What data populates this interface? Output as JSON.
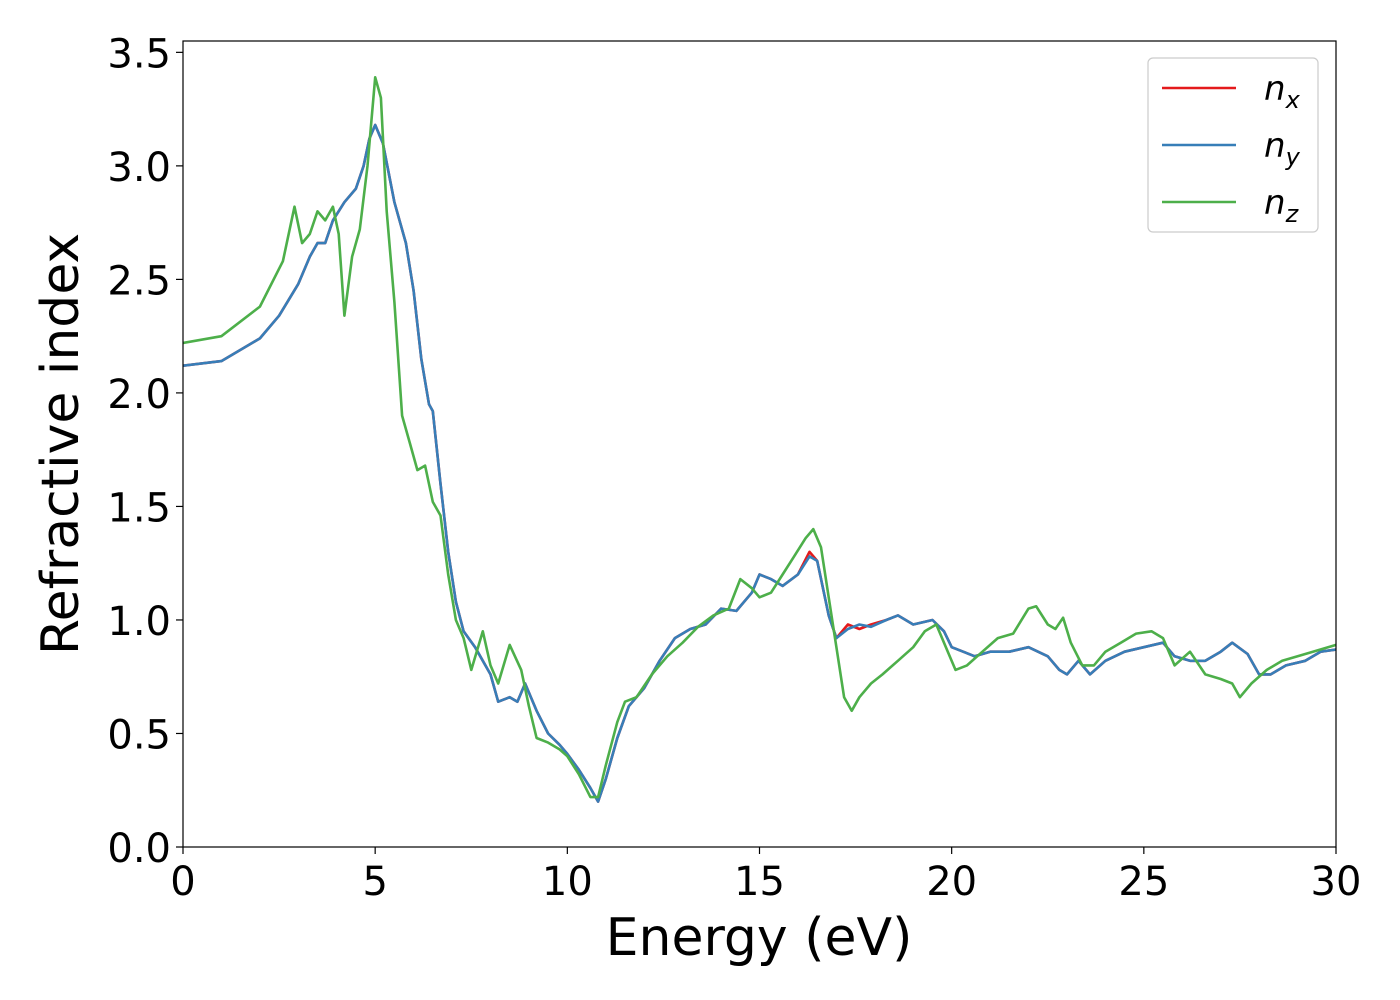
{
  "chart_data": {
    "type": "line",
    "xlabel": "Energy (eV)",
    "ylabel": "Refractive index",
    "xlim": [
      0,
      30
    ],
    "ylim": [
      0,
      3.55
    ],
    "xticks": [
      "0",
      "5",
      "10",
      "15",
      "20",
      "25",
      "30"
    ],
    "yticks": [
      "0.0",
      "0.5",
      "1.0",
      "1.5",
      "2.0",
      "2.5",
      "3.0",
      "3.5"
    ],
    "grid": false,
    "legend_position": "top-right",
    "series": [
      {
        "name": "n_x",
        "legend_base": "n",
        "legend_sub": "x",
        "color": "#e41a1c",
        "points": [
          [
            0,
            2.12
          ],
          [
            1,
            2.14
          ],
          [
            2,
            2.24
          ],
          [
            2.5,
            2.34
          ],
          [
            3,
            2.48
          ],
          [
            3.3,
            2.6
          ],
          [
            3.5,
            2.66
          ],
          [
            3.7,
            2.66
          ],
          [
            3.9,
            2.76
          ],
          [
            4.2,
            2.84
          ],
          [
            4.5,
            2.9
          ],
          [
            4.7,
            3.0
          ],
          [
            4.85,
            3.12
          ],
          [
            5.0,
            3.18
          ],
          [
            5.2,
            3.1
          ],
          [
            5.5,
            2.84
          ],
          [
            5.8,
            2.66
          ],
          [
            6.0,
            2.45
          ],
          [
            6.2,
            2.15
          ],
          [
            6.4,
            1.95
          ],
          [
            6.5,
            1.92
          ],
          [
            6.7,
            1.6
          ],
          [
            6.9,
            1.3
          ],
          [
            7.1,
            1.08
          ],
          [
            7.3,
            0.95
          ],
          [
            7.6,
            0.88
          ],
          [
            8.0,
            0.76
          ],
          [
            8.2,
            0.64
          ],
          [
            8.5,
            0.66
          ],
          [
            8.7,
            0.64
          ],
          [
            8.9,
            0.72
          ],
          [
            9.2,
            0.6
          ],
          [
            9.5,
            0.5
          ],
          [
            9.8,
            0.45
          ],
          [
            10.0,
            0.41
          ],
          [
            10.3,
            0.34
          ],
          [
            10.6,
            0.26
          ],
          [
            10.8,
            0.2
          ],
          [
            11.0,
            0.3
          ],
          [
            11.3,
            0.48
          ],
          [
            11.6,
            0.62
          ],
          [
            12.0,
            0.7
          ],
          [
            12.4,
            0.82
          ],
          [
            12.8,
            0.92
          ],
          [
            13.2,
            0.96
          ],
          [
            13.6,
            0.98
          ],
          [
            14.0,
            1.05
          ],
          [
            14.4,
            1.04
          ],
          [
            14.8,
            1.12
          ],
          [
            15.0,
            1.2
          ],
          [
            15.3,
            1.18
          ],
          [
            15.6,
            1.15
          ],
          [
            16.0,
            1.2
          ],
          [
            16.3,
            1.3
          ],
          [
            16.5,
            1.26
          ],
          [
            16.8,
            1.02
          ],
          [
            17.0,
            0.92
          ],
          [
            17.3,
            0.98
          ],
          [
            17.6,
            0.96
          ],
          [
            17.9,
            0.98
          ],
          [
            18.3,
            1.0
          ],
          [
            18.6,
            1.02
          ],
          [
            19.0,
            0.98
          ],
          [
            19.5,
            1.0
          ],
          [
            19.8,
            0.95
          ],
          [
            20.0,
            0.88
          ],
          [
            20.3,
            0.86
          ],
          [
            20.6,
            0.84
          ],
          [
            21.0,
            0.86
          ],
          [
            21.5,
            0.86
          ],
          [
            22.0,
            0.88
          ],
          [
            22.5,
            0.84
          ],
          [
            22.8,
            0.78
          ],
          [
            23.0,
            0.76
          ],
          [
            23.3,
            0.82
          ],
          [
            23.6,
            0.76
          ],
          [
            24.0,
            0.82
          ],
          [
            24.5,
            0.86
          ],
          [
            25.0,
            0.88
          ],
          [
            25.5,
            0.9
          ],
          [
            25.8,
            0.84
          ],
          [
            26.2,
            0.82
          ],
          [
            26.6,
            0.82
          ],
          [
            27.0,
            0.86
          ],
          [
            27.3,
            0.9
          ],
          [
            27.7,
            0.85
          ],
          [
            28.0,
            0.76
          ],
          [
            28.3,
            0.76
          ],
          [
            28.7,
            0.8
          ],
          [
            29.2,
            0.82
          ],
          [
            29.6,
            0.86
          ],
          [
            30.0,
            0.87
          ]
        ]
      },
      {
        "name": "n_y",
        "legend_base": "n",
        "legend_sub": "y",
        "color": "#377eb8",
        "points": [
          [
            0,
            2.12
          ],
          [
            1,
            2.14
          ],
          [
            2,
            2.24
          ],
          [
            2.5,
            2.34
          ],
          [
            3,
            2.48
          ],
          [
            3.3,
            2.6
          ],
          [
            3.5,
            2.66
          ],
          [
            3.7,
            2.66
          ],
          [
            3.9,
            2.76
          ],
          [
            4.2,
            2.84
          ],
          [
            4.5,
            2.9
          ],
          [
            4.7,
            3.0
          ],
          [
            4.85,
            3.12
          ],
          [
            5.0,
            3.18
          ],
          [
            5.2,
            3.1
          ],
          [
            5.5,
            2.84
          ],
          [
            5.8,
            2.66
          ],
          [
            6.0,
            2.45
          ],
          [
            6.2,
            2.15
          ],
          [
            6.4,
            1.95
          ],
          [
            6.5,
            1.92
          ],
          [
            6.7,
            1.6
          ],
          [
            6.9,
            1.3
          ],
          [
            7.1,
            1.08
          ],
          [
            7.3,
            0.95
          ],
          [
            7.6,
            0.88
          ],
          [
            8.0,
            0.76
          ],
          [
            8.2,
            0.64
          ],
          [
            8.5,
            0.66
          ],
          [
            8.7,
            0.64
          ],
          [
            8.9,
            0.72
          ],
          [
            9.2,
            0.6
          ],
          [
            9.5,
            0.5
          ],
          [
            9.8,
            0.45
          ],
          [
            10.0,
            0.41
          ],
          [
            10.3,
            0.34
          ],
          [
            10.6,
            0.26
          ],
          [
            10.8,
            0.2
          ],
          [
            11.0,
            0.3
          ],
          [
            11.3,
            0.48
          ],
          [
            11.6,
            0.62
          ],
          [
            12.0,
            0.7
          ],
          [
            12.4,
            0.82
          ],
          [
            12.8,
            0.92
          ],
          [
            13.2,
            0.96
          ],
          [
            13.6,
            0.98
          ],
          [
            14.0,
            1.05
          ],
          [
            14.4,
            1.04
          ],
          [
            14.8,
            1.12
          ],
          [
            15.0,
            1.2
          ],
          [
            15.3,
            1.18
          ],
          [
            15.6,
            1.15
          ],
          [
            16.0,
            1.2
          ],
          [
            16.3,
            1.28
          ],
          [
            16.5,
            1.26
          ],
          [
            16.8,
            1.02
          ],
          [
            17.0,
            0.92
          ],
          [
            17.3,
            0.96
          ],
          [
            17.6,
            0.98
          ],
          [
            17.9,
            0.97
          ],
          [
            18.3,
            1.0
          ],
          [
            18.6,
            1.02
          ],
          [
            19.0,
            0.98
          ],
          [
            19.5,
            1.0
          ],
          [
            19.8,
            0.95
          ],
          [
            20.0,
            0.88
          ],
          [
            20.3,
            0.86
          ],
          [
            20.6,
            0.84
          ],
          [
            21.0,
            0.86
          ],
          [
            21.5,
            0.86
          ],
          [
            22.0,
            0.88
          ],
          [
            22.5,
            0.84
          ],
          [
            22.8,
            0.78
          ],
          [
            23.0,
            0.76
          ],
          [
            23.3,
            0.82
          ],
          [
            23.6,
            0.76
          ],
          [
            24.0,
            0.82
          ],
          [
            24.5,
            0.86
          ],
          [
            25.0,
            0.88
          ],
          [
            25.5,
            0.9
          ],
          [
            25.8,
            0.84
          ],
          [
            26.2,
            0.82
          ],
          [
            26.6,
            0.82
          ],
          [
            27.0,
            0.86
          ],
          [
            27.3,
            0.9
          ],
          [
            27.7,
            0.85
          ],
          [
            28.0,
            0.76
          ],
          [
            28.3,
            0.76
          ],
          [
            28.7,
            0.8
          ],
          [
            29.2,
            0.82
          ],
          [
            29.6,
            0.86
          ],
          [
            30.0,
            0.87
          ]
        ]
      },
      {
        "name": "n_z",
        "legend_base": "n",
        "legend_sub": "z",
        "color": "#4daf4a",
        "points": [
          [
            0,
            2.22
          ],
          [
            1,
            2.25
          ],
          [
            2,
            2.38
          ],
          [
            2.6,
            2.58
          ],
          [
            2.9,
            2.82
          ],
          [
            3.1,
            2.66
          ],
          [
            3.3,
            2.7
          ],
          [
            3.5,
            2.8
          ],
          [
            3.7,
            2.76
          ],
          [
            3.9,
            2.82
          ],
          [
            4.05,
            2.7
          ],
          [
            4.2,
            2.34
          ],
          [
            4.4,
            2.6
          ],
          [
            4.6,
            2.72
          ],
          [
            4.8,
            3.0
          ],
          [
            5.0,
            3.39
          ],
          [
            5.15,
            3.3
          ],
          [
            5.3,
            2.8
          ],
          [
            5.5,
            2.4
          ],
          [
            5.7,
            1.9
          ],
          [
            5.9,
            1.78
          ],
          [
            6.1,
            1.66
          ],
          [
            6.3,
            1.68
          ],
          [
            6.5,
            1.52
          ],
          [
            6.7,
            1.46
          ],
          [
            6.9,
            1.2
          ],
          [
            7.1,
            1.0
          ],
          [
            7.3,
            0.92
          ],
          [
            7.5,
            0.78
          ],
          [
            7.8,
            0.95
          ],
          [
            8.0,
            0.8
          ],
          [
            8.2,
            0.72
          ],
          [
            8.5,
            0.89
          ],
          [
            8.8,
            0.78
          ],
          [
            9.0,
            0.62
          ],
          [
            9.2,
            0.48
          ],
          [
            9.5,
            0.46
          ],
          [
            9.8,
            0.43
          ],
          [
            10.0,
            0.4
          ],
          [
            10.3,
            0.32
          ],
          [
            10.6,
            0.22
          ],
          [
            10.8,
            0.22
          ],
          [
            11.0,
            0.36
          ],
          [
            11.3,
            0.55
          ],
          [
            11.5,
            0.64
          ],
          [
            11.8,
            0.66
          ],
          [
            12.2,
            0.76
          ],
          [
            12.6,
            0.84
          ],
          [
            13.0,
            0.9
          ],
          [
            13.4,
            0.97
          ],
          [
            13.8,
            1.02
          ],
          [
            14.2,
            1.05
          ],
          [
            14.5,
            1.18
          ],
          [
            14.8,
            1.14
          ],
          [
            15.0,
            1.1
          ],
          [
            15.3,
            1.12
          ],
          [
            15.6,
            1.2
          ],
          [
            15.9,
            1.28
          ],
          [
            16.2,
            1.36
          ],
          [
            16.4,
            1.4
          ],
          [
            16.6,
            1.32
          ],
          [
            16.8,
            1.1
          ],
          [
            17.0,
            0.88
          ],
          [
            17.2,
            0.66
          ],
          [
            17.4,
            0.6
          ],
          [
            17.6,
            0.66
          ],
          [
            17.9,
            0.72
          ],
          [
            18.2,
            0.76
          ],
          [
            18.6,
            0.82
          ],
          [
            19.0,
            0.88
          ],
          [
            19.3,
            0.95
          ],
          [
            19.6,
            0.98
          ],
          [
            19.9,
            0.86
          ],
          [
            20.1,
            0.78
          ],
          [
            20.4,
            0.8
          ],
          [
            20.8,
            0.86
          ],
          [
            21.2,
            0.92
          ],
          [
            21.6,
            0.94
          ],
          [
            22.0,
            1.05
          ],
          [
            22.2,
            1.06
          ],
          [
            22.5,
            0.98
          ],
          [
            22.7,
            0.96
          ],
          [
            22.9,
            1.01
          ],
          [
            23.1,
            0.9
          ],
          [
            23.4,
            0.8
          ],
          [
            23.7,
            0.8
          ],
          [
            24.0,
            0.86
          ],
          [
            24.4,
            0.9
          ],
          [
            24.8,
            0.94
          ],
          [
            25.2,
            0.95
          ],
          [
            25.5,
            0.92
          ],
          [
            25.8,
            0.8
          ],
          [
            26.2,
            0.86
          ],
          [
            26.6,
            0.76
          ],
          [
            27.0,
            0.74
          ],
          [
            27.3,
            0.72
          ],
          [
            27.5,
            0.66
          ],
          [
            27.8,
            0.72
          ],
          [
            28.2,
            0.78
          ],
          [
            28.6,
            0.82
          ],
          [
            29.0,
            0.84
          ],
          [
            29.4,
            0.86
          ],
          [
            30.0,
            0.89
          ]
        ]
      }
    ]
  }
}
